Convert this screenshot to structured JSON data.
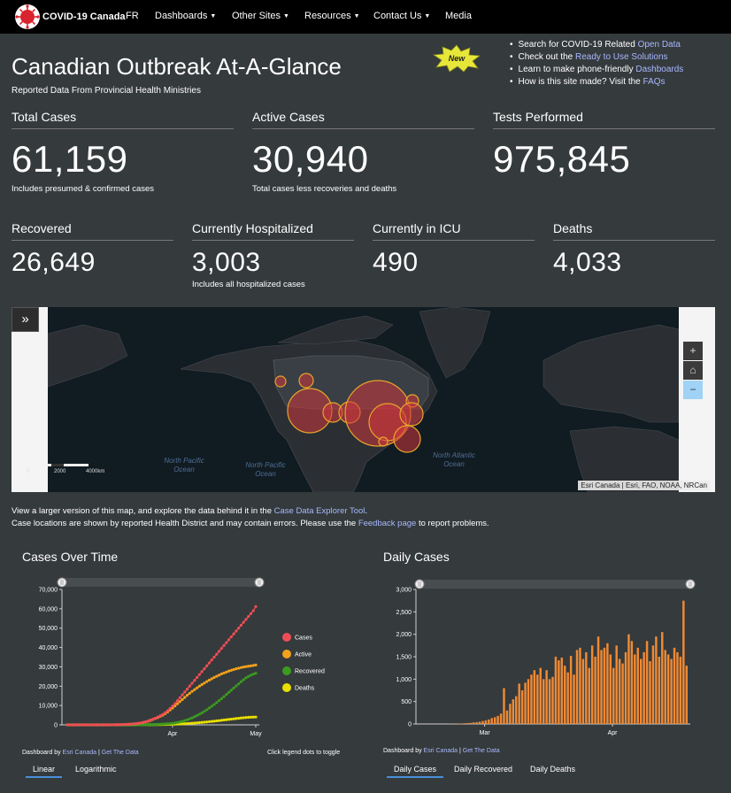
{
  "nav": {
    "brand": "COVID-19 Canada",
    "items": [
      {
        "label": "FR",
        "caret": false
      },
      {
        "label": "Dashboards",
        "caret": true
      },
      {
        "label": "Other Sites",
        "caret": true
      },
      {
        "label": "Resources",
        "caret": true
      },
      {
        "label": "Contact Us",
        "caret": true
      },
      {
        "label": "Media",
        "caret": false
      }
    ]
  },
  "header": {
    "title": "Canadian Outbreak At-A-Glance",
    "subtitle": "Reported Data From Provincial Health Ministries",
    "badge": "New",
    "bullets": [
      {
        "pre": "Search for COVID-19 Related ",
        "link": "Open Data"
      },
      {
        "pre": "Check out the ",
        "link": "Ready to Use Solutions"
      },
      {
        "pre": "Learn to make phone-friendly ",
        "link": "Dashboards"
      },
      {
        "pre": "How is this site made? Visit the ",
        "link": "FAQs"
      }
    ]
  },
  "stats": {
    "total": {
      "label": "Total Cases",
      "value": "61,159",
      "note": "Includes presumed & confirmed cases"
    },
    "active": {
      "label": "Active Cases",
      "value": "30,940",
      "note": "Total cases less recoveries and deaths"
    },
    "tests": {
      "label": "Tests Performed",
      "value": "975,845",
      "note": ""
    },
    "recovered": {
      "label": "Recovered",
      "value": "26,649",
      "note": ""
    },
    "hospital": {
      "label": "Currently Hospitalized",
      "value": "3,003",
      "note": "Includes all hospitalized cases"
    },
    "icu": {
      "label": "Currently in ICU",
      "value": "490",
      "note": ""
    },
    "deaths": {
      "label": "Deaths",
      "value": "4,033",
      "note": ""
    }
  },
  "map": {
    "toggle": "»",
    "zoom_in": "+",
    "home": "⌂",
    "zoom_out": "−",
    "attribution": "Esri Canada | Esri, FAO, NOAA, NRCan",
    "oceans": [
      "North Pacific Ocean",
      "North Pacific Ocean",
      "North Atlantic Ocean"
    ],
    "scale": [
      "0",
      "2000",
      "4000km"
    ]
  },
  "map_note": {
    "line1_pre": "View a larger version of this map, and explore the data behind it in the ",
    "line1_link": "Case Data Explorer Tool",
    "line1_post": ".",
    "line2_pre": "Case locations are shown by reported Health District and may contain errors. Please use the ",
    "line2_link": "Feedback page",
    "line2_post": " to report problems."
  },
  "left_chart": {
    "title": "Cases Over Time",
    "footer_pre": "Dashboard by ",
    "footer_link1": "Esri Canada",
    "footer_sep": " | ",
    "footer_link2": "Get The Data",
    "legend_hint": "Click legend dots to toggle",
    "tabs": [
      "Linear",
      "Logarithmic"
    ]
  },
  "right_chart": {
    "title": "Daily Cases",
    "footer_pre": "Dashboard by ",
    "footer_link1": "Esri Canada",
    "footer_sep": " | ",
    "footer_link2": "Get The Data",
    "tabs": [
      "Daily Cases",
      "Daily Recovered",
      "Daily Deaths"
    ]
  },
  "chart_data": [
    {
      "type": "line",
      "title": "Cases Over Time",
      "xlabel": "",
      "ylabel": "",
      "x_ticks": [
        "Apr",
        "May"
      ],
      "ylim": [
        0,
        70000
      ],
      "y_ticks": [
        "0",
        "10,000",
        "20,000",
        "30,000",
        "40,000",
        "50,000",
        "60,000",
        "70,000"
      ],
      "legend_position": "right",
      "series": [
        {
          "name": "Cases",
          "color": "#ef4d56",
          "values": [
            0,
            0,
            0,
            0,
            0,
            0,
            0,
            0,
            0,
            0,
            0,
            0,
            0,
            0,
            0,
            0,
            10,
            20,
            30,
            50,
            80,
            110,
            150,
            200,
            250,
            320,
            400,
            500,
            620,
            800,
            1000,
            1300,
            1600,
            2000,
            2500,
            3000,
            3500,
            4100,
            4700,
            5400,
            6300,
            7300,
            8500,
            9700,
            11000,
            12500,
            14000,
            15500,
            17000,
            18500,
            20000,
            21500,
            23000,
            24500,
            26000,
            27500,
            29000,
            30500,
            32000,
            33500,
            35000,
            36500,
            38000,
            39500,
            41000,
            42500,
            44000,
            45500,
            47000,
            48500,
            50000,
            51500,
            53000,
            54500,
            56000,
            57500,
            59000,
            61159
          ]
        },
        {
          "name": "Active",
          "color": "#f3a21b",
          "values": [
            0,
            0,
            0,
            0,
            0,
            0,
            0,
            0,
            0,
            0,
            0,
            0,
            0,
            0,
            0,
            0,
            10,
            20,
            30,
            50,
            75,
            100,
            140,
            190,
            240,
            300,
            380,
            470,
            580,
            750,
            950,
            1200,
            1500,
            1850,
            2300,
            2800,
            3300,
            3800,
            4400,
            5000,
            5800,
            6700,
            7700,
            8700,
            9800,
            10900,
            12000,
            13100,
            14200,
            15300,
            16300,
            17300,
            18200,
            19100,
            20000,
            20800,
            21600,
            22400,
            23100,
            23800,
            24500,
            25100,
            25700,
            26300,
            26800,
            27300,
            27800,
            28200,
            28600,
            29000,
            29300,
            29600,
            29900,
            30100,
            30300,
            30500,
            30700,
            30940
          ]
        },
        {
          "name": "Recovered",
          "color": "#3b9b1f",
          "values": [
            0,
            0,
            0,
            0,
            0,
            0,
            0,
            0,
            0,
            0,
            0,
            0,
            0,
            0,
            0,
            0,
            0,
            0,
            0,
            0,
            0,
            0,
            0,
            0,
            0,
            0,
            0,
            0,
            0,
            0,
            20,
            50,
            80,
            120,
            160,
            200,
            250,
            300,
            350,
            400,
            500,
            600,
            700,
            800,
            1000,
            1200,
            1500,
            1800,
            2200,
            2600,
            3100,
            3600,
            4200,
            4800,
            5500,
            6200,
            7000,
            7800,
            8700,
            9600,
            10500,
            11500,
            12500,
            13500,
            14600,
            15700,
            16800,
            17900,
            19000,
            20100,
            21200,
            22300,
            23300,
            24300,
            25000,
            25700,
            26200,
            26649
          ]
        },
        {
          "name": "Deaths",
          "color": "#e8e000",
          "values": [
            0,
            0,
            0,
            0,
            0,
            0,
            0,
            0,
            0,
            0,
            0,
            0,
            0,
            0,
            0,
            0,
            0,
            0,
            0,
            0,
            1,
            2,
            3,
            4,
            5,
            8,
            10,
            12,
            15,
            19,
            24,
            30,
            38,
            48,
            60,
            75,
            90,
            110,
            130,
            155,
            180,
            210,
            250,
            290,
            340,
            400,
            460,
            530,
            600,
            680,
            760,
            850,
            950,
            1050,
            1150,
            1260,
            1380,
            1500,
            1630,
            1760,
            1900,
            2050,
            2200,
            2350,
            2500,
            2650,
            2800,
            2950,
            3100,
            3250,
            3400,
            3550,
            3680,
            3800,
            3900,
            3970,
            4010,
            4033
          ]
        }
      ]
    },
    {
      "type": "bar",
      "title": "Daily Cases",
      "xlabel": "",
      "ylabel": "",
      "x_ticks": [
        "Mar",
        "Apr"
      ],
      "ylim": [
        0,
        3000
      ],
      "y_ticks": [
        "0",
        "500",
        "1,000",
        "1,500",
        "2,000",
        "2,500",
        "3,000"
      ],
      "series": [
        {
          "name": "Daily Cases",
          "color": "#ef8a35",
          "values": [
            0,
            0,
            0,
            0,
            0,
            0,
            0,
            0,
            0,
            1,
            2,
            3,
            5,
            8,
            10,
            15,
            20,
            25,
            35,
            40,
            50,
            65,
            80,
            100,
            130,
            150,
            180,
            230,
            800,
            300,
            450,
            550,
            620,
            900,
            750,
            920,
            1000,
            1100,
            1200,
            1100,
            1250,
            1000,
            1200,
            1000,
            1050,
            1500,
            1420,
            1480,
            1300,
            1150,
            1520,
            1100,
            1650,
            1700,
            1450,
            1600,
            1250,
            1750,
            1500,
            1950,
            1650,
            1700,
            1800,
            1550,
            1250,
            1750,
            1450,
            1350,
            1600,
            2000,
            1850,
            1550,
            1700,
            1450,
            1600,
            1850,
            1400,
            1750,
            1950,
            1500,
            2050,
            1650,
            1550,
            1450,
            1700,
            1600,
            1500,
            2750,
            1300
          ]
        }
      ]
    }
  ]
}
